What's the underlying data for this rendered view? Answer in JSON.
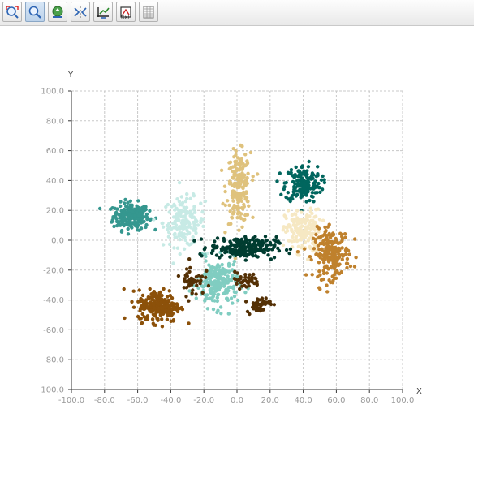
{
  "toolbar": {
    "tools": [
      {
        "icon": "zoom-region-icon"
      },
      {
        "icon": "zoom-icon",
        "active": true
      },
      {
        "icon": "pan-icon"
      },
      {
        "icon": "reset-zoom-icon"
      },
      {
        "icon": "axis-settings-icon"
      },
      {
        "icon": "edit-plot-icon"
      },
      {
        "icon": "data-table-icon"
      }
    ]
  },
  "chart_data": {
    "type": "scatter",
    "title": "",
    "xlabel": "X",
    "ylabel": "Y",
    "xlim": [
      -100,
      100
    ],
    "ylim": [
      -100,
      100
    ],
    "xticks": [
      "-100.0",
      "-80.0",
      "-60.0",
      "-40.0",
      "-20.0",
      "0.0",
      "20.0",
      "40.0",
      "60.0",
      "80.0",
      "100.0"
    ],
    "yticks": [
      "100.0",
      "80.0",
      "60.0",
      "40.0",
      "20.0",
      "0.0",
      "-20.0",
      "-40.0",
      "-60.0",
      "-80.0",
      "-100.0"
    ],
    "grid": true,
    "colors": {
      "teal": "#35978f",
      "light_cyan": "#c7eae5",
      "tan": "#dfc27d",
      "dark_teal": "#01665e",
      "cream": "#f6e8c3",
      "orange_brown": "#bf812d",
      "mint": "#80cdc1",
      "darkest_teal": "#003c30",
      "brown": "#8c510a",
      "dark_brown": "#543005"
    },
    "clusters": [
      {
        "color": "teal",
        "center": [
          -64,
          16
        ],
        "spread": [
          6,
          5
        ],
        "count": 230
      },
      {
        "color": "light_cyan",
        "center": [
          -32,
          12
        ],
        "spread": [
          7,
          9
        ],
        "count": 160
      },
      {
        "color": "tan",
        "center": [
          1,
          35
        ],
        "spread": [
          4,
          13
        ],
        "count": 200
      },
      {
        "color": "dark_teal",
        "center": [
          40,
          38
        ],
        "spread": [
          6,
          7
        ],
        "count": 180
      },
      {
        "color": "cream",
        "center": [
          40,
          6
        ],
        "spread": [
          6,
          8
        ],
        "count": 180
      },
      {
        "color": "orange_brown",
        "center": [
          57,
          -9
        ],
        "spread": [
          6,
          9
        ],
        "count": 220
      },
      {
        "color": "mint",
        "center": [
          -12,
          -29
        ],
        "spread": [
          7,
          9
        ],
        "count": 220
      },
      {
        "color": "darkest_teal",
        "center": [
          4,
          -5
        ],
        "spread": [
          11,
          4
        ],
        "count": 220
      },
      {
        "color": "brown",
        "center": [
          -47,
          -44
        ],
        "spread": [
          7,
          6
        ],
        "count": 230
      },
      {
        "color": "dark_brown",
        "center": [
          -27,
          -26
        ],
        "spread": [
          4,
          6
        ],
        "count": 45
      },
      {
        "color": "dark_brown",
        "center": [
          5,
          -27
        ],
        "spread": [
          5,
          3
        ],
        "count": 40
      },
      {
        "color": "dark_brown",
        "center": [
          13,
          -43
        ],
        "spread": [
          4,
          3
        ],
        "count": 45
      }
    ]
  }
}
